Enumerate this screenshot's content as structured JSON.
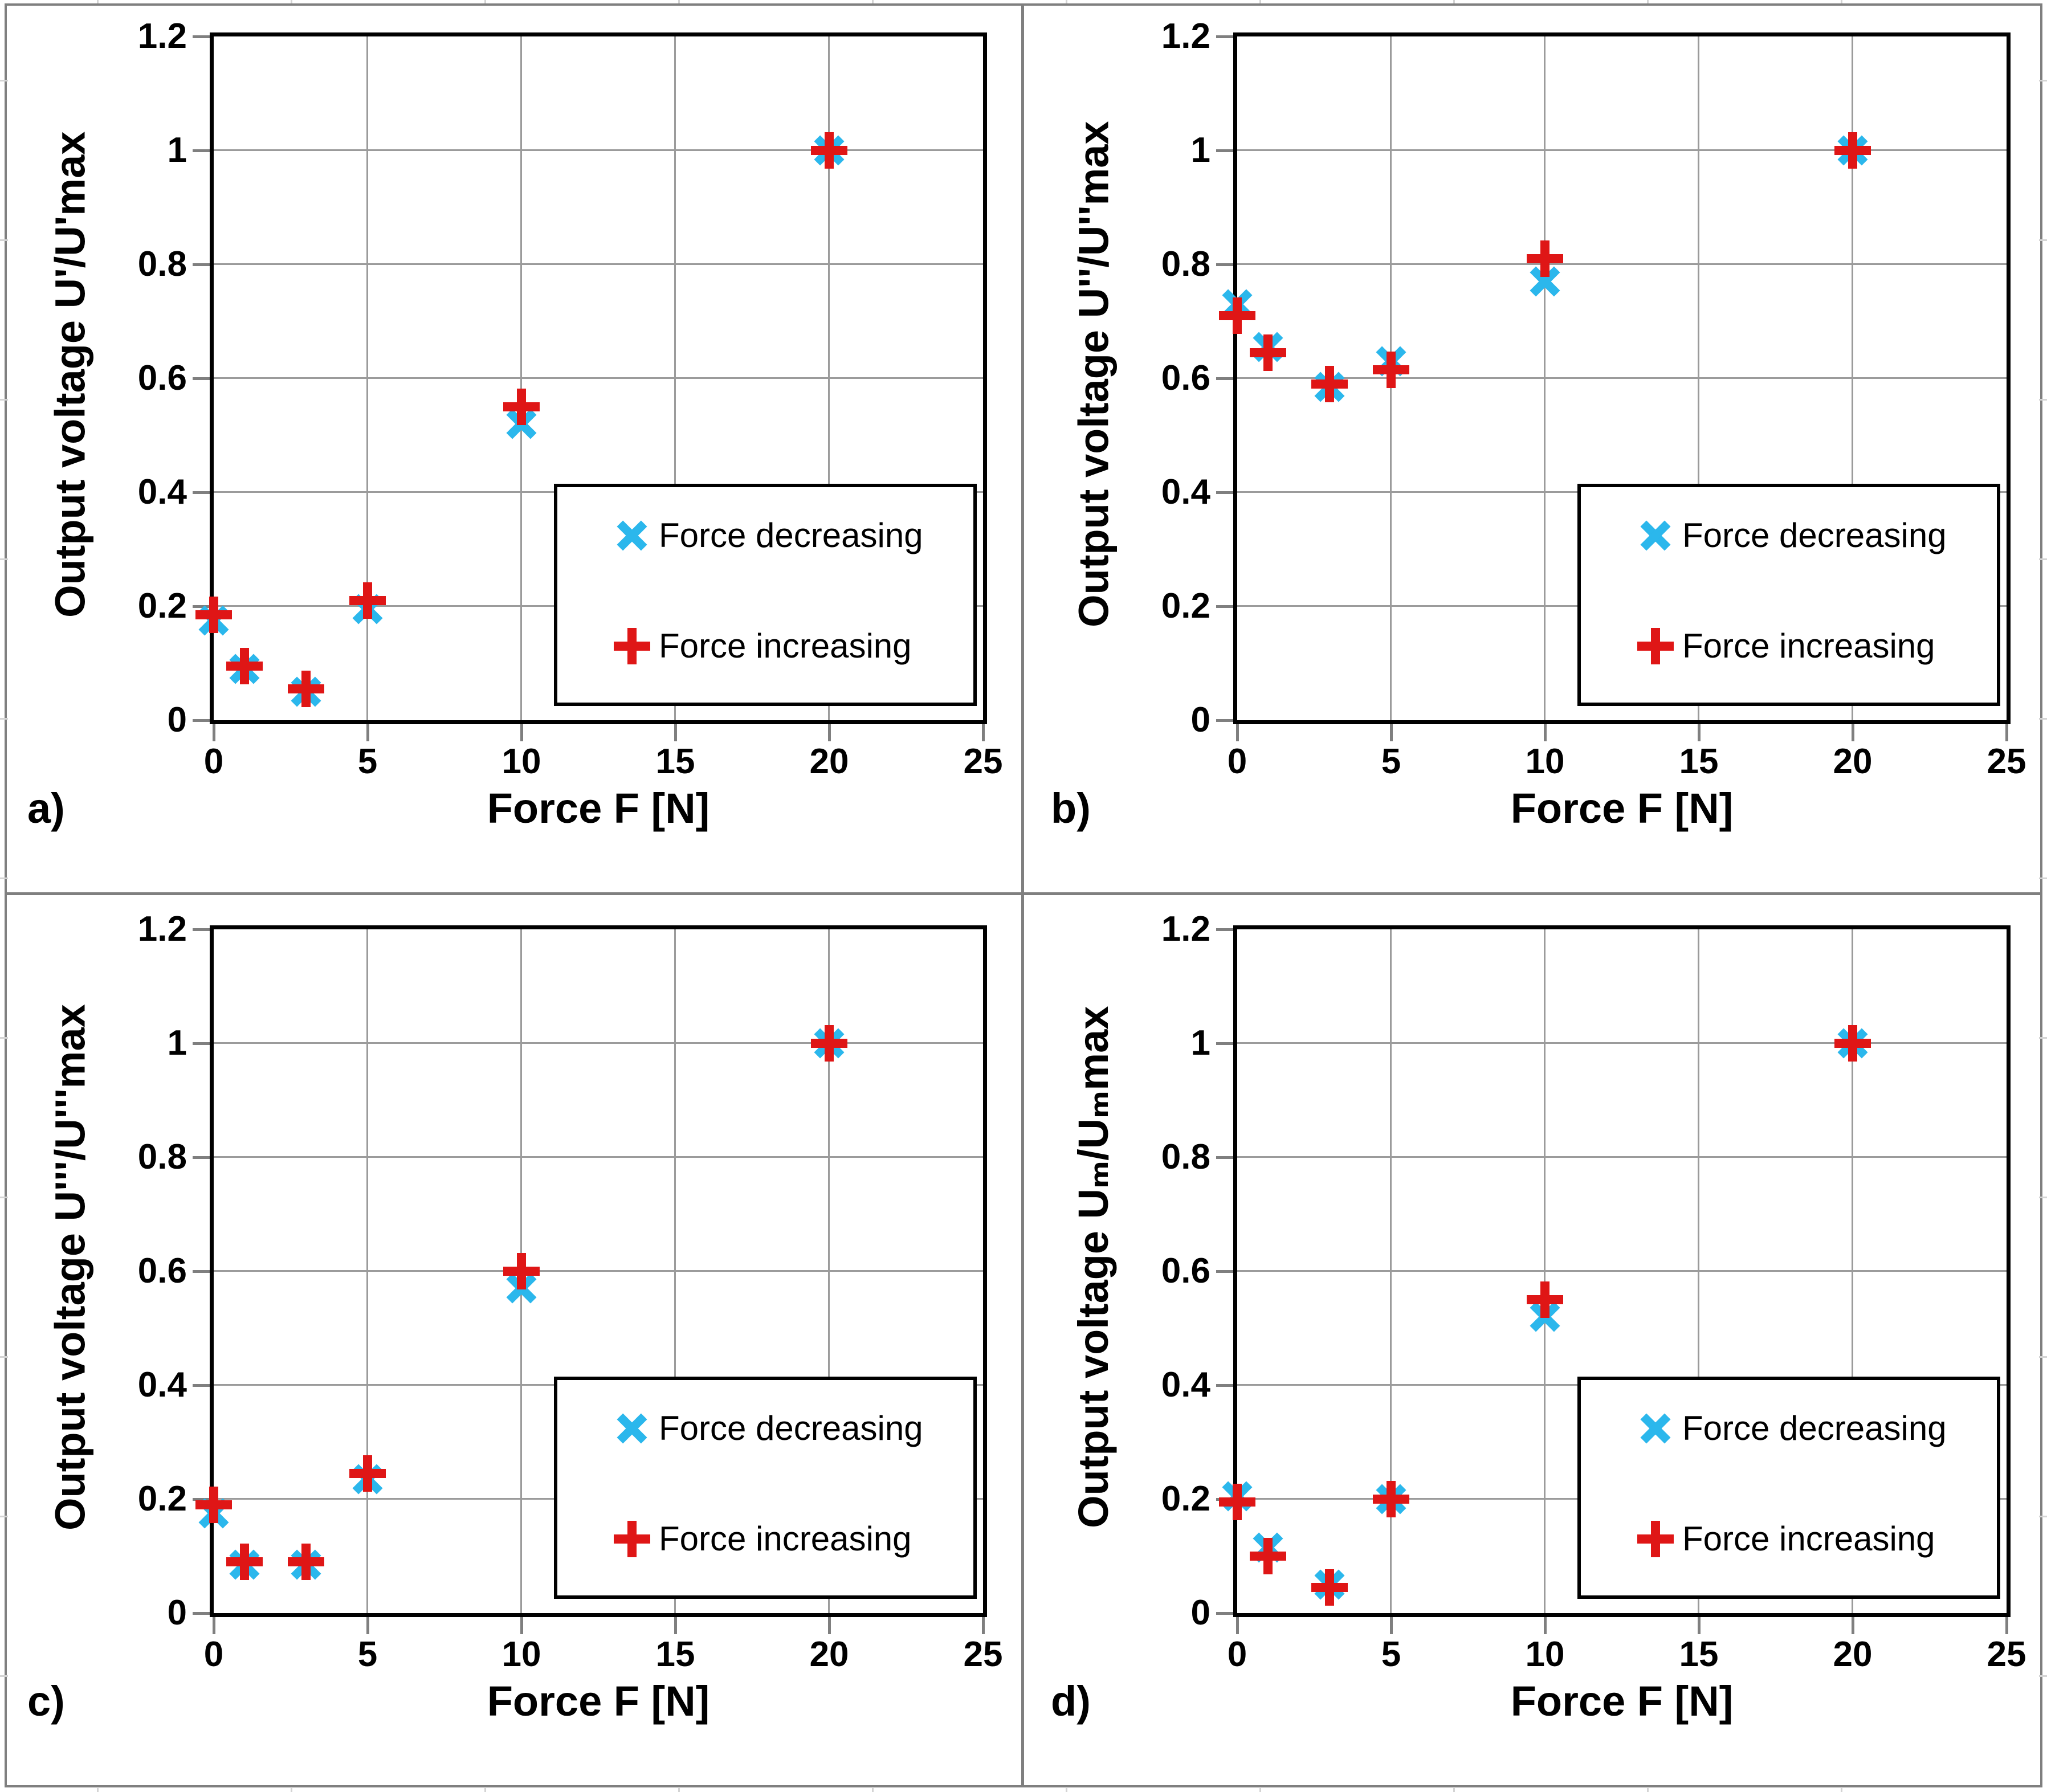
{
  "figure": {
    "colors": {
      "decreasing_marker": "#2bb7ec",
      "increasing_marker": "#df1616",
      "gridline": "#9b9b9b",
      "tick": "#7f7f7f",
      "frame": "#000000",
      "panel_border": "#7f7f7f"
    },
    "legend": {
      "items": [
        {
          "label": "Force decreasing",
          "marker": "x-marker"
        },
        {
          "label": "Force increasing",
          "marker": "plus-marker"
        }
      ]
    }
  },
  "chart_data": [
    {
      "type": "scatter",
      "panel_label": "a)",
      "xlabel": "Force F [N]",
      "ylabel": "Output voltage U'/U'max",
      "xlim": [
        0,
        25
      ],
      "ylim": [
        0,
        1.2
      ],
      "xticks": [
        0,
        5,
        10,
        15,
        20,
        25
      ],
      "yticks": [
        0,
        0.2,
        0.4,
        0.6,
        0.8,
        1,
        1.2
      ],
      "grid": true,
      "legend": [
        "Force decreasing",
        "Force increasing"
      ],
      "legend_position": "lower right",
      "x": [
        0,
        1,
        3,
        5,
        10,
        20
      ],
      "series": [
        {
          "name": "Force decreasing",
          "marker": "x",
          "values": [
            0.175,
            0.09,
            0.05,
            0.195,
            0.52,
            1.0
          ]
        },
        {
          "name": "Force increasing",
          "marker": "+",
          "values": [
            0.185,
            0.095,
            0.055,
            0.21,
            0.55,
            1.0
          ]
        }
      ]
    },
    {
      "type": "scatter",
      "panel_label": "b)",
      "xlabel": "Force F [N]",
      "ylabel": "Output voltage U''/U''max",
      "xlim": [
        0,
        25
      ],
      "ylim": [
        0,
        1.2
      ],
      "xticks": [
        0,
        5,
        10,
        15,
        20,
        25
      ],
      "yticks": [
        0,
        0.2,
        0.4,
        0.6,
        0.8,
        1,
        1.2
      ],
      "grid": true,
      "legend": [
        "Force decreasing",
        "Force increasing"
      ],
      "legend_position": "lower right",
      "x": [
        0,
        1,
        3,
        5,
        10,
        20
      ],
      "series": [
        {
          "name": "Force decreasing",
          "marker": "x",
          "values": [
            0.73,
            0.655,
            0.585,
            0.63,
            0.77,
            1.0
          ]
        },
        {
          "name": "Force increasing",
          "marker": "+",
          "values": [
            0.71,
            0.645,
            0.59,
            0.615,
            0.81,
            1.0
          ]
        }
      ]
    },
    {
      "type": "scatter",
      "panel_label": "c)",
      "xlabel": "Force F [N]",
      "ylabel": "Output voltage U'''/U'''max",
      "xlim": [
        0,
        25
      ],
      "ylim": [
        0,
        1.2
      ],
      "xticks": [
        0,
        5,
        10,
        15,
        20,
        25
      ],
      "yticks": [
        0,
        0.2,
        0.4,
        0.6,
        0.8,
        1,
        1.2
      ],
      "grid": true,
      "legend": [
        "Force decreasing",
        "Force increasing"
      ],
      "legend_position": "lower right",
      "x": [
        0,
        1,
        3,
        5,
        10,
        20
      ],
      "series": [
        {
          "name": "Force decreasing",
          "marker": "x",
          "values": [
            0.175,
            0.085,
            0.085,
            0.235,
            0.57,
            1.0
          ]
        },
        {
          "name": "Force increasing",
          "marker": "+",
          "values": [
            0.19,
            0.09,
            0.09,
            0.245,
            0.6,
            1.0
          ]
        }
      ]
    },
    {
      "type": "scatter",
      "panel_label": "d)",
      "xlabel": "Force F [N]",
      "ylabel": "Output voltage Uₘ/Uₘmax",
      "xlim": [
        0,
        25
      ],
      "ylim": [
        0,
        1.2
      ],
      "xticks": [
        0,
        5,
        10,
        15,
        20,
        25
      ],
      "yticks": [
        0,
        0.2,
        0.4,
        0.6,
        0.8,
        1,
        1.2
      ],
      "grid": true,
      "legend": [
        "Force decreasing",
        "Force increasing"
      ],
      "legend_position": "lower right",
      "x": [
        0,
        1,
        3,
        5,
        10,
        20
      ],
      "series": [
        {
          "name": "Force decreasing",
          "marker": "x",
          "values": [
            0.205,
            0.115,
            0.05,
            0.2,
            0.52,
            1.0
          ]
        },
        {
          "name": "Force increasing",
          "marker": "+",
          "values": [
            0.195,
            0.1,
            0.045,
            0.2,
            0.55,
            1.0
          ]
        }
      ]
    }
  ]
}
